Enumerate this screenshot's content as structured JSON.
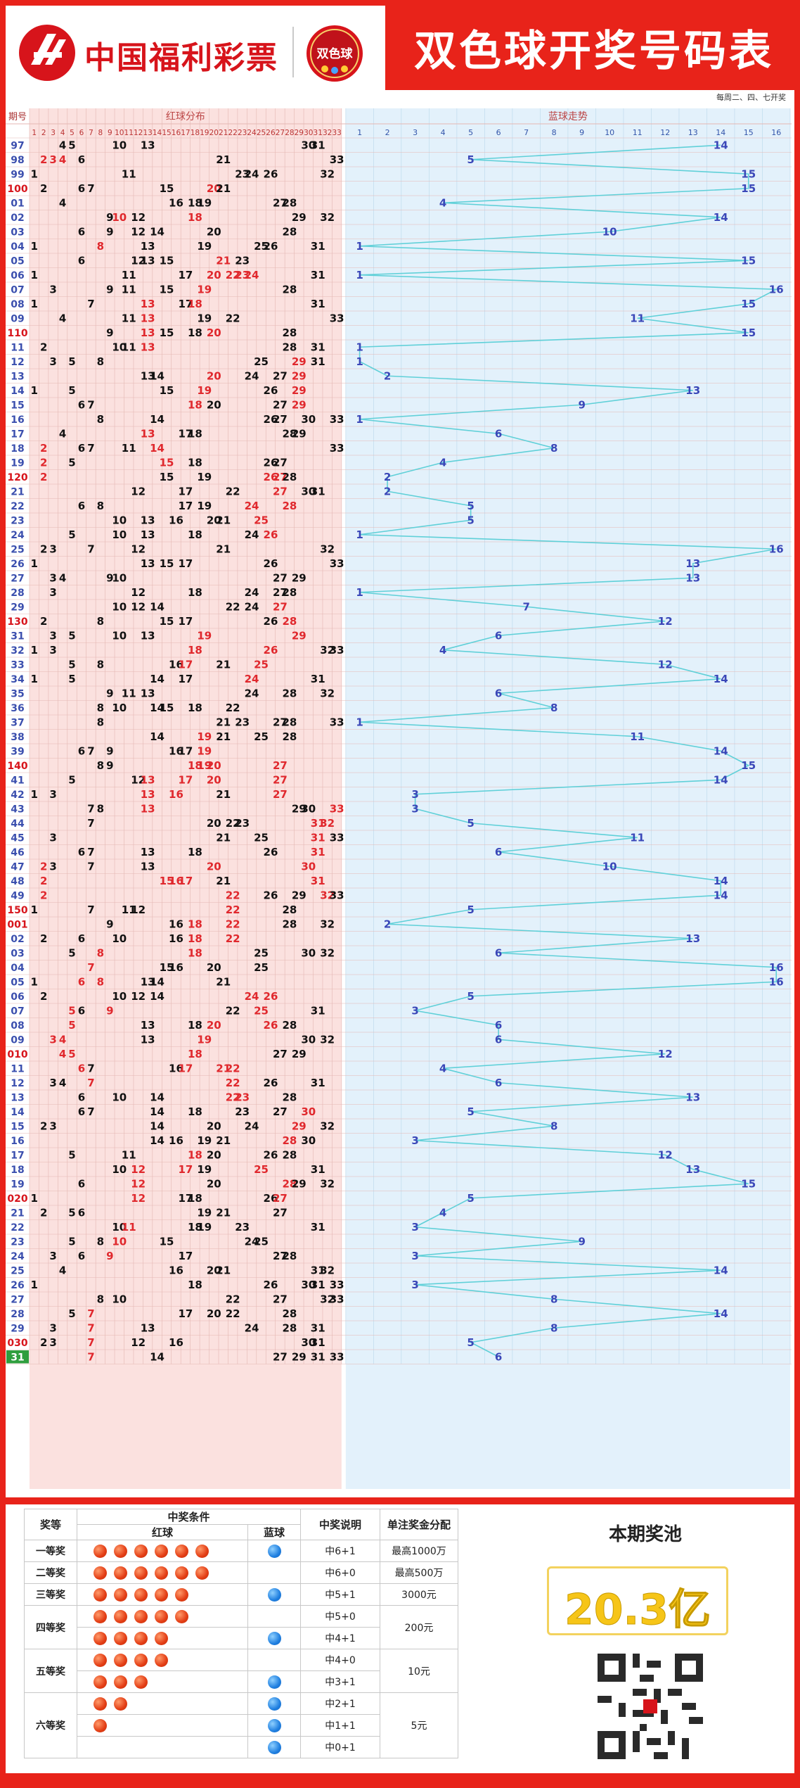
{
  "header": {
    "logo_text": "中国福利彩票",
    "badge_text": "双色球",
    "title": "双色球开奖号码表"
  },
  "chart": {
    "period_header": "期号",
    "red_header": "红球分布",
    "blue_header": "蓝球走势",
    "draw_days": "每周二、四、七开奖",
    "red_numbers": [
      1,
      2,
      3,
      4,
      5,
      6,
      7,
      8,
      9,
      10,
      11,
      12,
      13,
      14,
      15,
      16,
      17,
      18,
      19,
      20,
      21,
      22,
      23,
      24,
      25,
      26,
      27,
      28,
      29,
      30,
      31,
      32,
      33
    ],
    "blue_numbers": [
      1,
      2,
      3,
      4,
      5,
      6,
      7,
      8,
      9,
      10,
      11,
      12,
      13,
      14,
      15,
      16
    ],
    "colors": {
      "red_bg": "#fbe1df",
      "blue_bg": "#e3f1fb",
      "grid": "#e4b7b3",
      "grid_blue": "#b9d7ea",
      "period_red": "#d7141b",
      "period_blue": "#3b4fae",
      "red_highlight": "#e0282d",
      "blue_number": "#3a47b8",
      "blue_line": "#5fd0d8",
      "current_period_bg": "#2f9e3e"
    },
    "periods": [
      "97",
      "98",
      "99",
      "100",
      "01",
      "02",
      "03",
      "04",
      "05",
      "06",
      "07",
      "08",
      "09",
      "110",
      "11",
      "12",
      "13",
      "14",
      "15",
      "16",
      "17",
      "18",
      "19",
      "120",
      "21",
      "22",
      "23",
      "24",
      "25",
      "26",
      "27",
      "28",
      "29",
      "130",
      "31",
      "32",
      "33",
      "34",
      "35",
      "36",
      "37",
      "38",
      "39",
      "140",
      "41",
      "42",
      "43",
      "44",
      "45",
      "46",
      "47",
      "48",
      "49",
      "150",
      "001",
      "02",
      "03",
      "04",
      "05",
      "06",
      "07",
      "08",
      "09",
      "010",
      "11",
      "12",
      "13",
      "14",
      "15",
      "16",
      "17",
      "18",
      "19",
      "020",
      "21",
      "22",
      "23",
      "24",
      "25",
      "26",
      "27",
      "28",
      "29",
      "030",
      "31"
    ],
    "highlight_periods": [
      "100",
      "110",
      "120",
      "130",
      "140",
      "150",
      "001",
      "010",
      "020",
      "030"
    ],
    "current_period": "31",
    "rows": [
      {
        "r": [
          4,
          5,
          10,
          13,
          30,
          31
        ],
        "h": [],
        "b": 14
      },
      {
        "r": [
          2,
          3,
          4,
          6,
          21,
          33
        ],
        "h": [
          2,
          3,
          4
        ],
        "b": 5
      },
      {
        "r": [
          1,
          11,
          23,
          24,
          26,
          32
        ],
        "h": [],
        "b": 15
      },
      {
        "r": [
          2,
          6,
          7,
          15,
          20,
          21
        ],
        "h": [
          20
        ],
        "b": 15
      },
      {
        "r": [
          4,
          16,
          18,
          19,
          27,
          28
        ],
        "h": [],
        "b": 4
      },
      {
        "r": [
          9,
          10,
          12,
          18,
          29,
          32
        ],
        "h": [
          10,
          18
        ],
        "b": 14
      },
      {
        "r": [
          6,
          9,
          12,
          14,
          20,
          28
        ],
        "h": [],
        "b": 10
      },
      {
        "r": [
          1,
          8,
          13,
          19,
          25,
          26,
          31
        ],
        "h": [
          8
        ],
        "b": 1
      },
      {
        "r": [
          6,
          12,
          13,
          15,
          21,
          23
        ],
        "h": [
          21
        ],
        "b": 15
      },
      {
        "r": [
          1,
          11,
          17,
          20,
          22,
          23,
          24,
          31
        ],
        "h": [
          20,
          22,
          23,
          24
        ],
        "b": 1
      },
      {
        "r": [
          3,
          9,
          11,
          15,
          19,
          28
        ],
        "h": [
          19
        ],
        "b": 16
      },
      {
        "r": [
          1,
          7,
          13,
          17,
          18,
          31
        ],
        "h": [
          13,
          18
        ],
        "b": 15
      },
      {
        "r": [
          4,
          11,
          13,
          19,
          22,
          33
        ],
        "h": [
          13
        ],
        "b": 11
      },
      {
        "r": [
          9,
          13,
          15,
          18,
          20,
          28
        ],
        "h": [
          13,
          20
        ],
        "b": 15
      },
      {
        "r": [
          2,
          10,
          11,
          13,
          28,
          31
        ],
        "h": [
          13
        ],
        "b": 1
      },
      {
        "r": [
          3,
          5,
          8,
          25,
          29,
          31
        ],
        "h": [
          29
        ],
        "b": 1
      },
      {
        "r": [
          13,
          14,
          20,
          24,
          27,
          29
        ],
        "h": [
          20,
          29
        ],
        "b": 2
      },
      {
        "r": [
          1,
          5,
          15,
          19,
          26,
          29
        ],
        "h": [
          19,
          29
        ],
        "b": 13
      },
      {
        "r": [
          6,
          7,
          18,
          20,
          27,
          29
        ],
        "h": [
          18,
          29
        ],
        "b": 9
      },
      {
        "r": [
          8,
          14,
          26,
          27,
          30,
          33
        ],
        "h": [],
        "b": 1
      },
      {
        "r": [
          4,
          13,
          17,
          18,
          28,
          29
        ],
        "h": [
          13
        ],
        "b": 6
      },
      {
        "r": [
          2,
          6,
          7,
          11,
          14,
          33
        ],
        "h": [
          2,
          14
        ],
        "b": 8
      },
      {
        "r": [
          2,
          5,
          15,
          18,
          26,
          27
        ],
        "h": [
          2,
          15
        ],
        "b": 4
      },
      {
        "r": [
          2,
          15,
          19,
          26,
          27,
          28
        ],
        "h": [
          2,
          26,
          27
        ],
        "b": 2
      },
      {
        "r": [
          12,
          17,
          22,
          27,
          30,
          31
        ],
        "h": [
          27
        ],
        "b": 2
      },
      {
        "r": [
          6,
          8,
          17,
          19,
          24,
          28
        ],
        "h": [
          24,
          28
        ],
        "b": 5
      },
      {
        "r": [
          10,
          13,
          16,
          20,
          21,
          25
        ],
        "h": [
          25
        ],
        "b": 5
      },
      {
        "r": [
          5,
          10,
          13,
          18,
          24,
          26
        ],
        "h": [
          26
        ],
        "b": 1
      },
      {
        "r": [
          2,
          3,
          7,
          12,
          21,
          32
        ],
        "h": [],
        "b": 16
      },
      {
        "r": [
          1,
          13,
          15,
          17,
          26,
          33
        ],
        "h": [],
        "b": 13
      },
      {
        "r": [
          3,
          4,
          9,
          10,
          27,
          29
        ],
        "h": [],
        "b": 13
      },
      {
        "r": [
          3,
          12,
          18,
          24,
          27,
          28
        ],
        "h": [],
        "b": 1
      },
      {
        "r": [
          10,
          12,
          14,
          22,
          24,
          27
        ],
        "h": [
          27
        ],
        "b": 7
      },
      {
        "r": [
          2,
          8,
          15,
          17,
          26,
          28
        ],
        "h": [
          28
        ],
        "b": 12
      },
      {
        "r": [
          3,
          5,
          10,
          13,
          19,
          29
        ],
        "h": [
          19,
          29
        ],
        "b": 6
      },
      {
        "r": [
          1,
          3,
          18,
          26,
          32,
          33
        ],
        "h": [
          18,
          26
        ],
        "b": 4
      },
      {
        "r": [
          5,
          8,
          16,
          17,
          21,
          25
        ],
        "h": [
          17,
          25
        ],
        "b": 12
      },
      {
        "r": [
          1,
          5,
          14,
          17,
          24,
          31
        ],
        "h": [
          24
        ],
        "b": 14
      },
      {
        "r": [
          9,
          11,
          13,
          24,
          28,
          32
        ],
        "h": [],
        "b": 6
      },
      {
        "r": [
          8,
          10,
          14,
          15,
          18,
          22
        ],
        "h": [],
        "b": 8
      },
      {
        "r": [
          8,
          21,
          23,
          27,
          28,
          33
        ],
        "h": [],
        "b": 1
      },
      {
        "r": [
          14,
          19,
          21,
          25,
          28
        ],
        "h": [
          19
        ],
        "b": 11
      },
      {
        "r": [
          6,
          7,
          9,
          16,
          17,
          19
        ],
        "h": [
          19
        ],
        "b": 14
      },
      {
        "r": [
          8,
          9,
          18,
          19,
          20,
          27
        ],
        "h": [
          18,
          19,
          20,
          27
        ],
        "b": 15
      },
      {
        "r": [
          5,
          12,
          13,
          17,
          20,
          27
        ],
        "h": [
          13,
          17,
          20,
          27
        ],
        "b": 14
      },
      {
        "r": [
          1,
          3,
          13,
          16,
          21,
          27
        ],
        "h": [
          13,
          16,
          27
        ],
        "b": 3
      },
      {
        "r": [
          7,
          8,
          13,
          29,
          30,
          33
        ],
        "h": [
          13,
          33
        ],
        "b": 3
      },
      {
        "r": [
          7,
          20,
          22,
          23,
          31,
          32
        ],
        "h": [
          31,
          32
        ],
        "b": 5
      },
      {
        "r": [
          3,
          21,
          25,
          31,
          33
        ],
        "h": [
          31
        ],
        "b": 11
      },
      {
        "r": [
          6,
          7,
          13,
          18,
          26,
          31
        ],
        "h": [
          31
        ],
        "b": 6
      },
      {
        "r": [
          2,
          3,
          7,
          13,
          20,
          30
        ],
        "h": [
          2,
          20,
          30
        ],
        "b": 10
      },
      {
        "r": [
          2,
          15,
          16,
          17,
          21,
          31
        ],
        "h": [
          2,
          15,
          16,
          17,
          31
        ],
        "b": 14
      },
      {
        "r": [
          2,
          22,
          26,
          29,
          32,
          33
        ],
        "h": [
          2,
          22,
          32
        ],
        "b": 14
      },
      {
        "r": [
          1,
          7,
          11,
          12,
          22,
          28
        ],
        "h": [
          22
        ],
        "b": 5
      },
      {
        "r": [
          9,
          16,
          18,
          22,
          28,
          32
        ],
        "h": [
          18,
          22
        ],
        "b": 2
      },
      {
        "r": [
          2,
          6,
          10,
          16,
          18,
          22
        ],
        "h": [
          18,
          22
        ],
        "b": 13
      },
      {
        "r": [
          5,
          8,
          18,
          25,
          30,
          32
        ],
        "h": [
          8,
          18
        ],
        "b": 6
      },
      {
        "r": [
          7,
          15,
          16,
          20,
          25
        ],
        "h": [
          7
        ],
        "b": 16
      },
      {
        "r": [
          1,
          6,
          8,
          13,
          14,
          21
        ],
        "h": [
          6,
          8
        ],
        "b": 16
      },
      {
        "r": [
          2,
          10,
          12,
          14,
          24,
          26
        ],
        "h": [
          24,
          26
        ],
        "b": 5
      },
      {
        "r": [
          5,
          6,
          9,
          22,
          25,
          31
        ],
        "h": [
          5,
          9,
          25
        ],
        "b": 3
      },
      {
        "r": [
          5,
          13,
          18,
          20,
          26,
          28
        ],
        "h": [
          5,
          20,
          26
        ],
        "b": 6
      },
      {
        "r": [
          3,
          4,
          13,
          19,
          30,
          32
        ],
        "h": [
          3,
          4,
          19
        ],
        "b": 6
      },
      {
        "r": [
          4,
          5,
          18,
          27,
          29
        ],
        "h": [
          4,
          5,
          18
        ],
        "b": 12
      },
      {
        "r": [
          6,
          7,
          16,
          17,
          21,
          22
        ],
        "h": [
          6,
          17,
          21,
          22
        ],
        "b": 4
      },
      {
        "r": [
          3,
          4,
          7,
          22,
          26,
          31
        ],
        "h": [
          7,
          22
        ],
        "b": 6
      },
      {
        "r": [
          6,
          10,
          14,
          22,
          23,
          28
        ],
        "h": [
          22,
          23
        ],
        "b": 13
      },
      {
        "r": [
          6,
          7,
          14,
          18,
          23,
          27,
          30
        ],
        "h": [
          30
        ],
        "b": 5
      },
      {
        "r": [
          2,
          3,
          14,
          20,
          24,
          29,
          32
        ],
        "h": [
          29
        ],
        "b": 8
      },
      {
        "r": [
          14,
          16,
          19,
          21,
          28,
          30
        ],
        "h": [
          28
        ],
        "b": 3
      },
      {
        "r": [
          5,
          11,
          18,
          20,
          26,
          28
        ],
        "h": [
          18
        ],
        "b": 12
      },
      {
        "r": [
          10,
          12,
          17,
          19,
          25,
          31
        ],
        "h": [
          12,
          17,
          25
        ],
        "b": 13
      },
      {
        "r": [
          6,
          12,
          20,
          28,
          29,
          32
        ],
        "h": [
          12,
          28
        ],
        "b": 15
      },
      {
        "r": [
          1,
          12,
          17,
          18,
          26,
          27
        ],
        "h": [
          12,
          27
        ],
        "b": 5
      },
      {
        "r": [
          2,
          5,
          6,
          19,
          21,
          27
        ],
        "h": [],
        "b": 4
      },
      {
        "r": [
          10,
          11,
          18,
          19,
          23,
          31
        ],
        "h": [
          11
        ],
        "b": 3
      },
      {
        "r": [
          5,
          8,
          10,
          15,
          24,
          25
        ],
        "h": [
          10
        ],
        "b": 9
      },
      {
        "r": [
          3,
          6,
          9,
          17,
          27,
          28
        ],
        "h": [
          9
        ],
        "b": 3
      },
      {
        "r": [
          4,
          16,
          20,
          21,
          31,
          32
        ],
        "h": [],
        "b": 14
      },
      {
        "r": [
          1,
          18,
          26,
          30,
          31,
          33
        ],
        "h": [],
        "b": 3
      },
      {
        "r": [
          8,
          10,
          22,
          27,
          32,
          33
        ],
        "h": [],
        "b": 8
      },
      {
        "r": [
          5,
          7,
          17,
          20,
          22,
          28
        ],
        "h": [
          7
        ],
        "b": 14
      },
      {
        "r": [
          3,
          7,
          13,
          24,
          28,
          31
        ],
        "h": [
          7
        ],
        "b": 8
      },
      {
        "r": [
          2,
          3,
          7,
          12,
          16,
          30,
          31
        ],
        "h": [
          7
        ],
        "b": 5
      },
      {
        "r": [
          7,
          14,
          27,
          29,
          31,
          33
        ],
        "h": [
          7
        ],
        "b": 6
      }
    ]
  },
  "prize_table": {
    "headers": {
      "level": "奖等",
      "condition": "中奖条件",
      "red": "红球",
      "blue": "蓝球",
      "desc": "中奖说明",
      "amount": "单注奖金分配"
    },
    "rows": [
      {
        "level": "一等奖",
        "red": 6,
        "blue": 1,
        "desc": "中6+1",
        "amount": "最高1000万"
      },
      {
        "level": "二等奖",
        "red": 6,
        "blue": 0,
        "desc": "中6+0",
        "amount": "最高500万"
      },
      {
        "level": "三等奖",
        "red": 5,
        "blue": 1,
        "desc": "中5+1",
        "amount": "3000元"
      },
      {
        "level": "四等奖",
        "red": 5,
        "blue": 0,
        "desc": "中5+0",
        "amount": "200元"
      },
      {
        "level": "",
        "red": 4,
        "blue": 1,
        "desc": "中4+1",
        "amount": ""
      },
      {
        "level": "五等奖",
        "red": 4,
        "blue": 0,
        "desc": "中4+0",
        "amount": "10元"
      },
      {
        "level": "",
        "red": 3,
        "blue": 1,
        "desc": "中3+1",
        "amount": ""
      },
      {
        "level": "六等奖",
        "red": 2,
        "blue": 1,
        "desc": "中2+1",
        "amount": "5元"
      },
      {
        "level": "",
        "red": 1,
        "blue": 1,
        "desc": "中1+1",
        "amount": ""
      },
      {
        "level": "",
        "red": 0,
        "blue": 1,
        "desc": "中0+1",
        "amount": ""
      }
    ]
  },
  "pool": {
    "label": "本期奖池",
    "value": "20.3亿"
  }
}
